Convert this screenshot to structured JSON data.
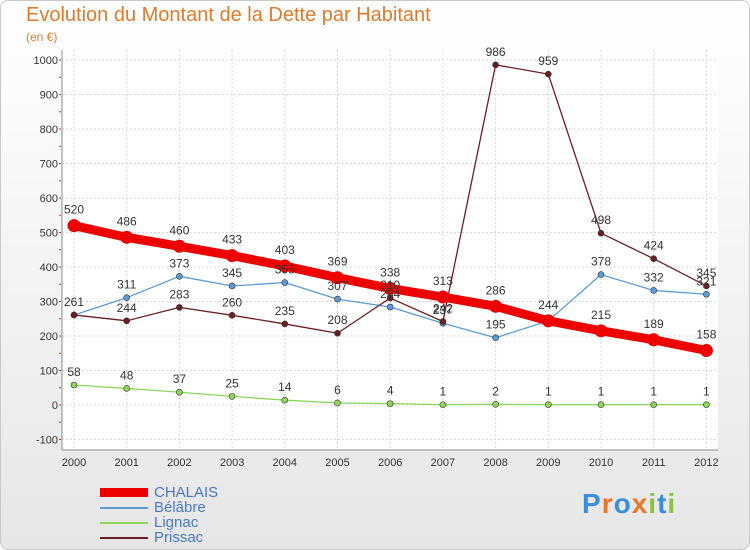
{
  "chart_data": {
    "type": "line",
    "title": "Evolution du Montant de la Dette par Habitant",
    "subtitle": "(en €)",
    "x": [
      "2000",
      "2001",
      "2002",
      "2003",
      "2004",
      "2005",
      "2006",
      "2007",
      "2008",
      "2009",
      "2010",
      "2011",
      "2012"
    ],
    "ylim": [
      -100,
      1000
    ],
    "yticks": [
      "-100",
      "0",
      "100",
      "200",
      "300",
      "400",
      "500",
      "600",
      "700",
      "800",
      "900",
      "1000"
    ],
    "grid": true,
    "legend_position": "bottom-left",
    "series": [
      {
        "name": "CHALAIS",
        "color": "#ee0000",
        "values": [
          520,
          486,
          460,
          433,
          403,
          369,
          338,
          313,
          286,
          244,
          215,
          189,
          158
        ],
        "labels": [
          "520",
          "486",
          "460",
          "433",
          "403",
          "369",
          "338",
          "313",
          "286",
          "244",
          "215",
          "189",
          "158"
        ]
      },
      {
        "name": "Bélâbre",
        "color": "#5b9bd5",
        "values": [
          261,
          311,
          373,
          345,
          355,
          307,
          284,
          237,
          195,
          244,
          378,
          332,
          321
        ],
        "labels": [
          "",
          "311",
          "373",
          "345",
          "355",
          "307",
          "284",
          "237",
          "195",
          "",
          "378",
          "332",
          "321"
        ]
      },
      {
        "name": "Lignac",
        "color": "#8ed65a",
        "values": [
          58,
          48,
          37,
          25,
          14,
          6,
          4,
          1,
          2,
          1,
          1,
          1,
          1
        ],
        "labels": [
          "58",
          "48",
          "37",
          "25",
          "14",
          "6",
          "4",
          "1",
          "2",
          "1",
          "1",
          "1",
          "1"
        ]
      },
      {
        "name": "Prissac",
        "color": "#6b1f22",
        "values": [
          261,
          244,
          283,
          260,
          235,
          208,
          310,
          242,
          986,
          959,
          498,
          424,
          345
        ],
        "labels": [
          "261",
          "244",
          "283",
          "260",
          "235",
          "208",
          "310",
          "242",
          "986",
          "959",
          "498",
          "424",
          "345"
        ]
      }
    ]
  },
  "logo": {
    "text": "Proxiti",
    "colors": [
      "#3b8fd8",
      "#e8762c",
      "#3b8fd8",
      "#e8762c",
      "#8bc540",
      "#3b8fd8",
      "#8bc540"
    ]
  }
}
